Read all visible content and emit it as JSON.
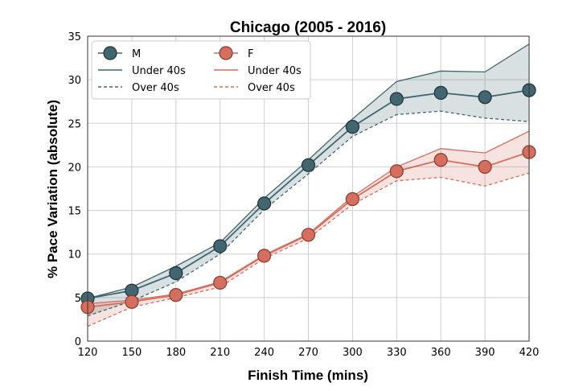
{
  "chart_data": {
    "type": "line",
    "title": "Chicago (2005 - 2016)",
    "xlabel": "Finish Time (mins)",
    "ylabel": "% Pace Variation (absolute)",
    "x": [
      120,
      150,
      180,
      210,
      240,
      270,
      300,
      330,
      360,
      390,
      420
    ],
    "xlim": [
      120,
      420
    ],
    "ylim": [
      0,
      35
    ],
    "xticks": [
      "120",
      "150",
      "180",
      "210",
      "240",
      "270",
      "300",
      "330",
      "360",
      "390",
      "420"
    ],
    "yticks": [
      "0",
      "5",
      "10",
      "15",
      "20",
      "25",
      "30",
      "35"
    ],
    "grid": true,
    "legend_position": "top-left",
    "legend": {
      "m_label": "M",
      "f_label": "F",
      "under_label": "Under 40s",
      "over_label": "Over 40s"
    },
    "series": [
      {
        "name": "M",
        "color": "#41666f",
        "values": [
          4.9,
          5.8,
          7.8,
          10.9,
          15.8,
          20.2,
          24.6,
          27.8,
          28.5,
          28.0,
          28.8
        ],
        "under40": [
          4.9,
          6.2,
          8.6,
          11.3,
          16.4,
          20.8,
          25.5,
          29.8,
          31.0,
          30.9,
          34.1
        ],
        "over40": [
          2.9,
          4.6,
          6.8,
          10.0,
          15.1,
          19.2,
          23.5,
          26.0,
          26.4,
          25.6,
          25.2
        ]
      },
      {
        "name": "F",
        "color": "#d46e5e",
        "values": [
          3.9,
          4.5,
          5.3,
          6.7,
          9.8,
          12.2,
          16.3,
          19.5,
          20.8,
          20.0,
          21.7
        ],
        "under40": [
          4.3,
          4.7,
          5.4,
          6.8,
          9.9,
          12.3,
          16.6,
          20.0,
          22.1,
          21.6,
          24.1
        ],
        "over40": [
          1.7,
          3.9,
          5.0,
          6.2,
          9.5,
          11.8,
          15.7,
          18.4,
          18.8,
          17.8,
          19.3
        ]
      }
    ]
  }
}
